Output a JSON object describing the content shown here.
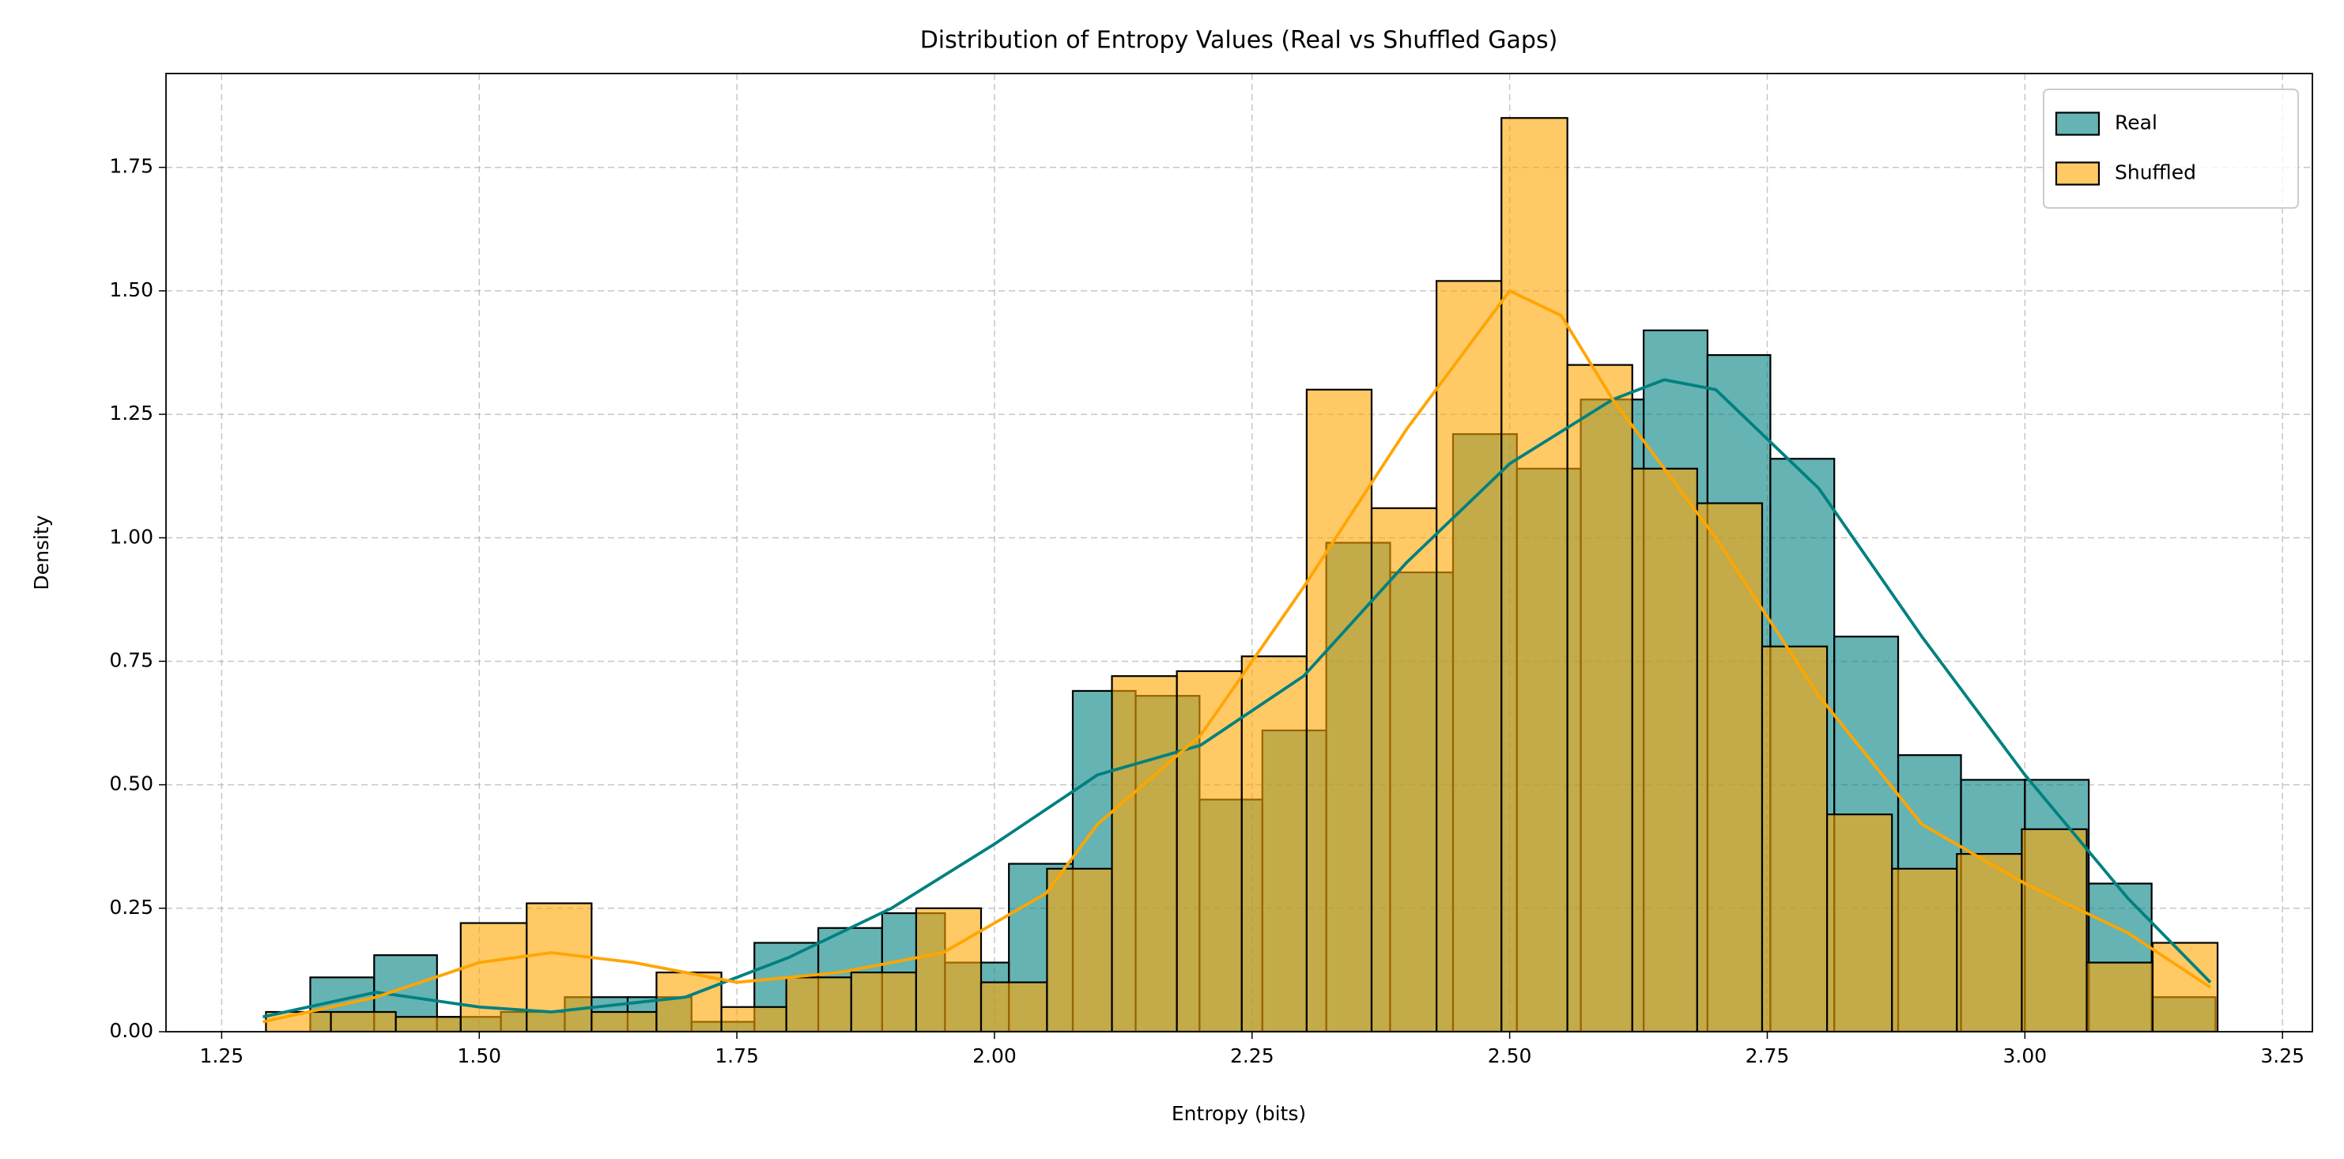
{
  "chart_data": {
    "type": "histogram",
    "title": "Distribution of Entropy Values (Real vs Shuffled Gaps)",
    "x_label": "Entropy (bits)",
    "y_label": "Density",
    "xlim": [
      1.196,
      3.279
    ],
    "ylim": [
      0,
      1.94
    ],
    "xticks": [
      1.25,
      {
        "value": 1.5,
        "label": "1.50"
      },
      1.75,
      {
        "value": 2.0,
        "label": "2.00"
      },
      2.25,
      {
        "value": 2.5,
        "label": "2.50"
      },
      2.75,
      {
        "value": 3.0,
        "label": "3.00"
      },
      3.25
    ],
    "yticks": [
      {
        "value": 0,
        "label": "0.00"
      },
      0.25,
      {
        "value": 0.5,
        "label": "0.50"
      },
      0.75,
      {
        "value": 1.0,
        "label": "1.00"
      },
      1.25,
      {
        "value": 1.5,
        "label": "1.50"
      },
      1.75
    ],
    "grid": true,
    "legend": "upper right",
    "alpha": 0.6,
    "series": [
      {
        "name": "Real",
        "color": "#008080",
        "bins": [
          1.336,
          1.398,
          1.459,
          1.521,
          1.583,
          1.644,
          1.706,
          1.767,
          1.829,
          1.891,
          1.952,
          2.014,
          2.076,
          2.137,
          2.199,
          2.26,
          2.322,
          2.384,
          2.445,
          2.507,
          2.569,
          2.63,
          2.692,
          2.753,
          2.815,
          2.877,
          2.938,
          3.0,
          3.062,
          3.123,
          3.185
        ],
        "values": [
          0.11,
          0.155,
          0.03,
          0.04,
          0.07,
          0.07,
          0.02,
          0.18,
          0.21,
          0.24,
          0.14,
          0.34,
          0.69,
          0.68,
          0.47,
          0.61,
          0.99,
          0.93,
          1.21,
          1.14,
          1.28,
          1.42,
          1.37,
          1.16,
          0.8,
          0.56,
          0.51,
          0.51,
          0.3,
          0.07
        ],
        "kde_x": [
          1.29,
          1.4,
          1.5,
          1.57,
          1.7,
          1.8,
          1.9,
          2.0,
          2.1,
          2.2,
          2.3,
          2.4,
          2.5,
          2.6,
          2.65,
          2.7,
          2.8,
          2.9,
          3.0,
          3.1,
          3.18
        ],
        "kde_y": [
          0.03,
          0.08,
          0.05,
          0.04,
          0.07,
          0.15,
          0.25,
          0.38,
          0.52,
          0.58,
          0.72,
          0.95,
          1.15,
          1.28,
          1.32,
          1.3,
          1.1,
          0.8,
          0.52,
          0.27,
          0.1
        ]
      },
      {
        "name": "Shuffled",
        "color": "#ffa500",
        "bins": [
          1.293,
          1.356,
          1.419,
          1.482,
          1.546,
          1.609,
          1.672,
          1.735,
          1.798,
          1.861,
          1.924,
          1.987,
          2.051,
          2.114,
          2.177,
          2.24,
          2.303,
          2.366,
          2.429,
          2.492,
          2.556,
          2.619,
          2.682,
          2.745,
          2.808,
          2.871,
          2.934,
          2.997,
          3.06,
          3.124,
          3.187
        ],
        "values": [
          0.04,
          0.04,
          0.03,
          0.22,
          0.26,
          0.04,
          0.12,
          0.05,
          0.11,
          0.12,
          0.25,
          0.1,
          0.33,
          0.72,
          0.73,
          0.76,
          1.3,
          1.06,
          1.52,
          1.85,
          1.35,
          1.14,
          1.07,
          0.78,
          0.44,
          0.33,
          0.36,
          0.41,
          0.14,
          0.18
        ],
        "kde_x": [
          1.29,
          1.4,
          1.5,
          1.57,
          1.65,
          1.75,
          1.85,
          1.95,
          2.05,
          2.1,
          2.2,
          2.3,
          2.4,
          2.5,
          2.55,
          2.6,
          2.7,
          2.8,
          2.9,
          3.0,
          3.1,
          3.18
        ],
        "kde_y": [
          0.02,
          0.07,
          0.14,
          0.16,
          0.14,
          0.1,
          0.12,
          0.16,
          0.28,
          0.42,
          0.6,
          0.9,
          1.22,
          1.5,
          1.45,
          1.28,
          1.0,
          0.68,
          0.42,
          0.3,
          0.2,
          0.09
        ]
      }
    ]
  }
}
